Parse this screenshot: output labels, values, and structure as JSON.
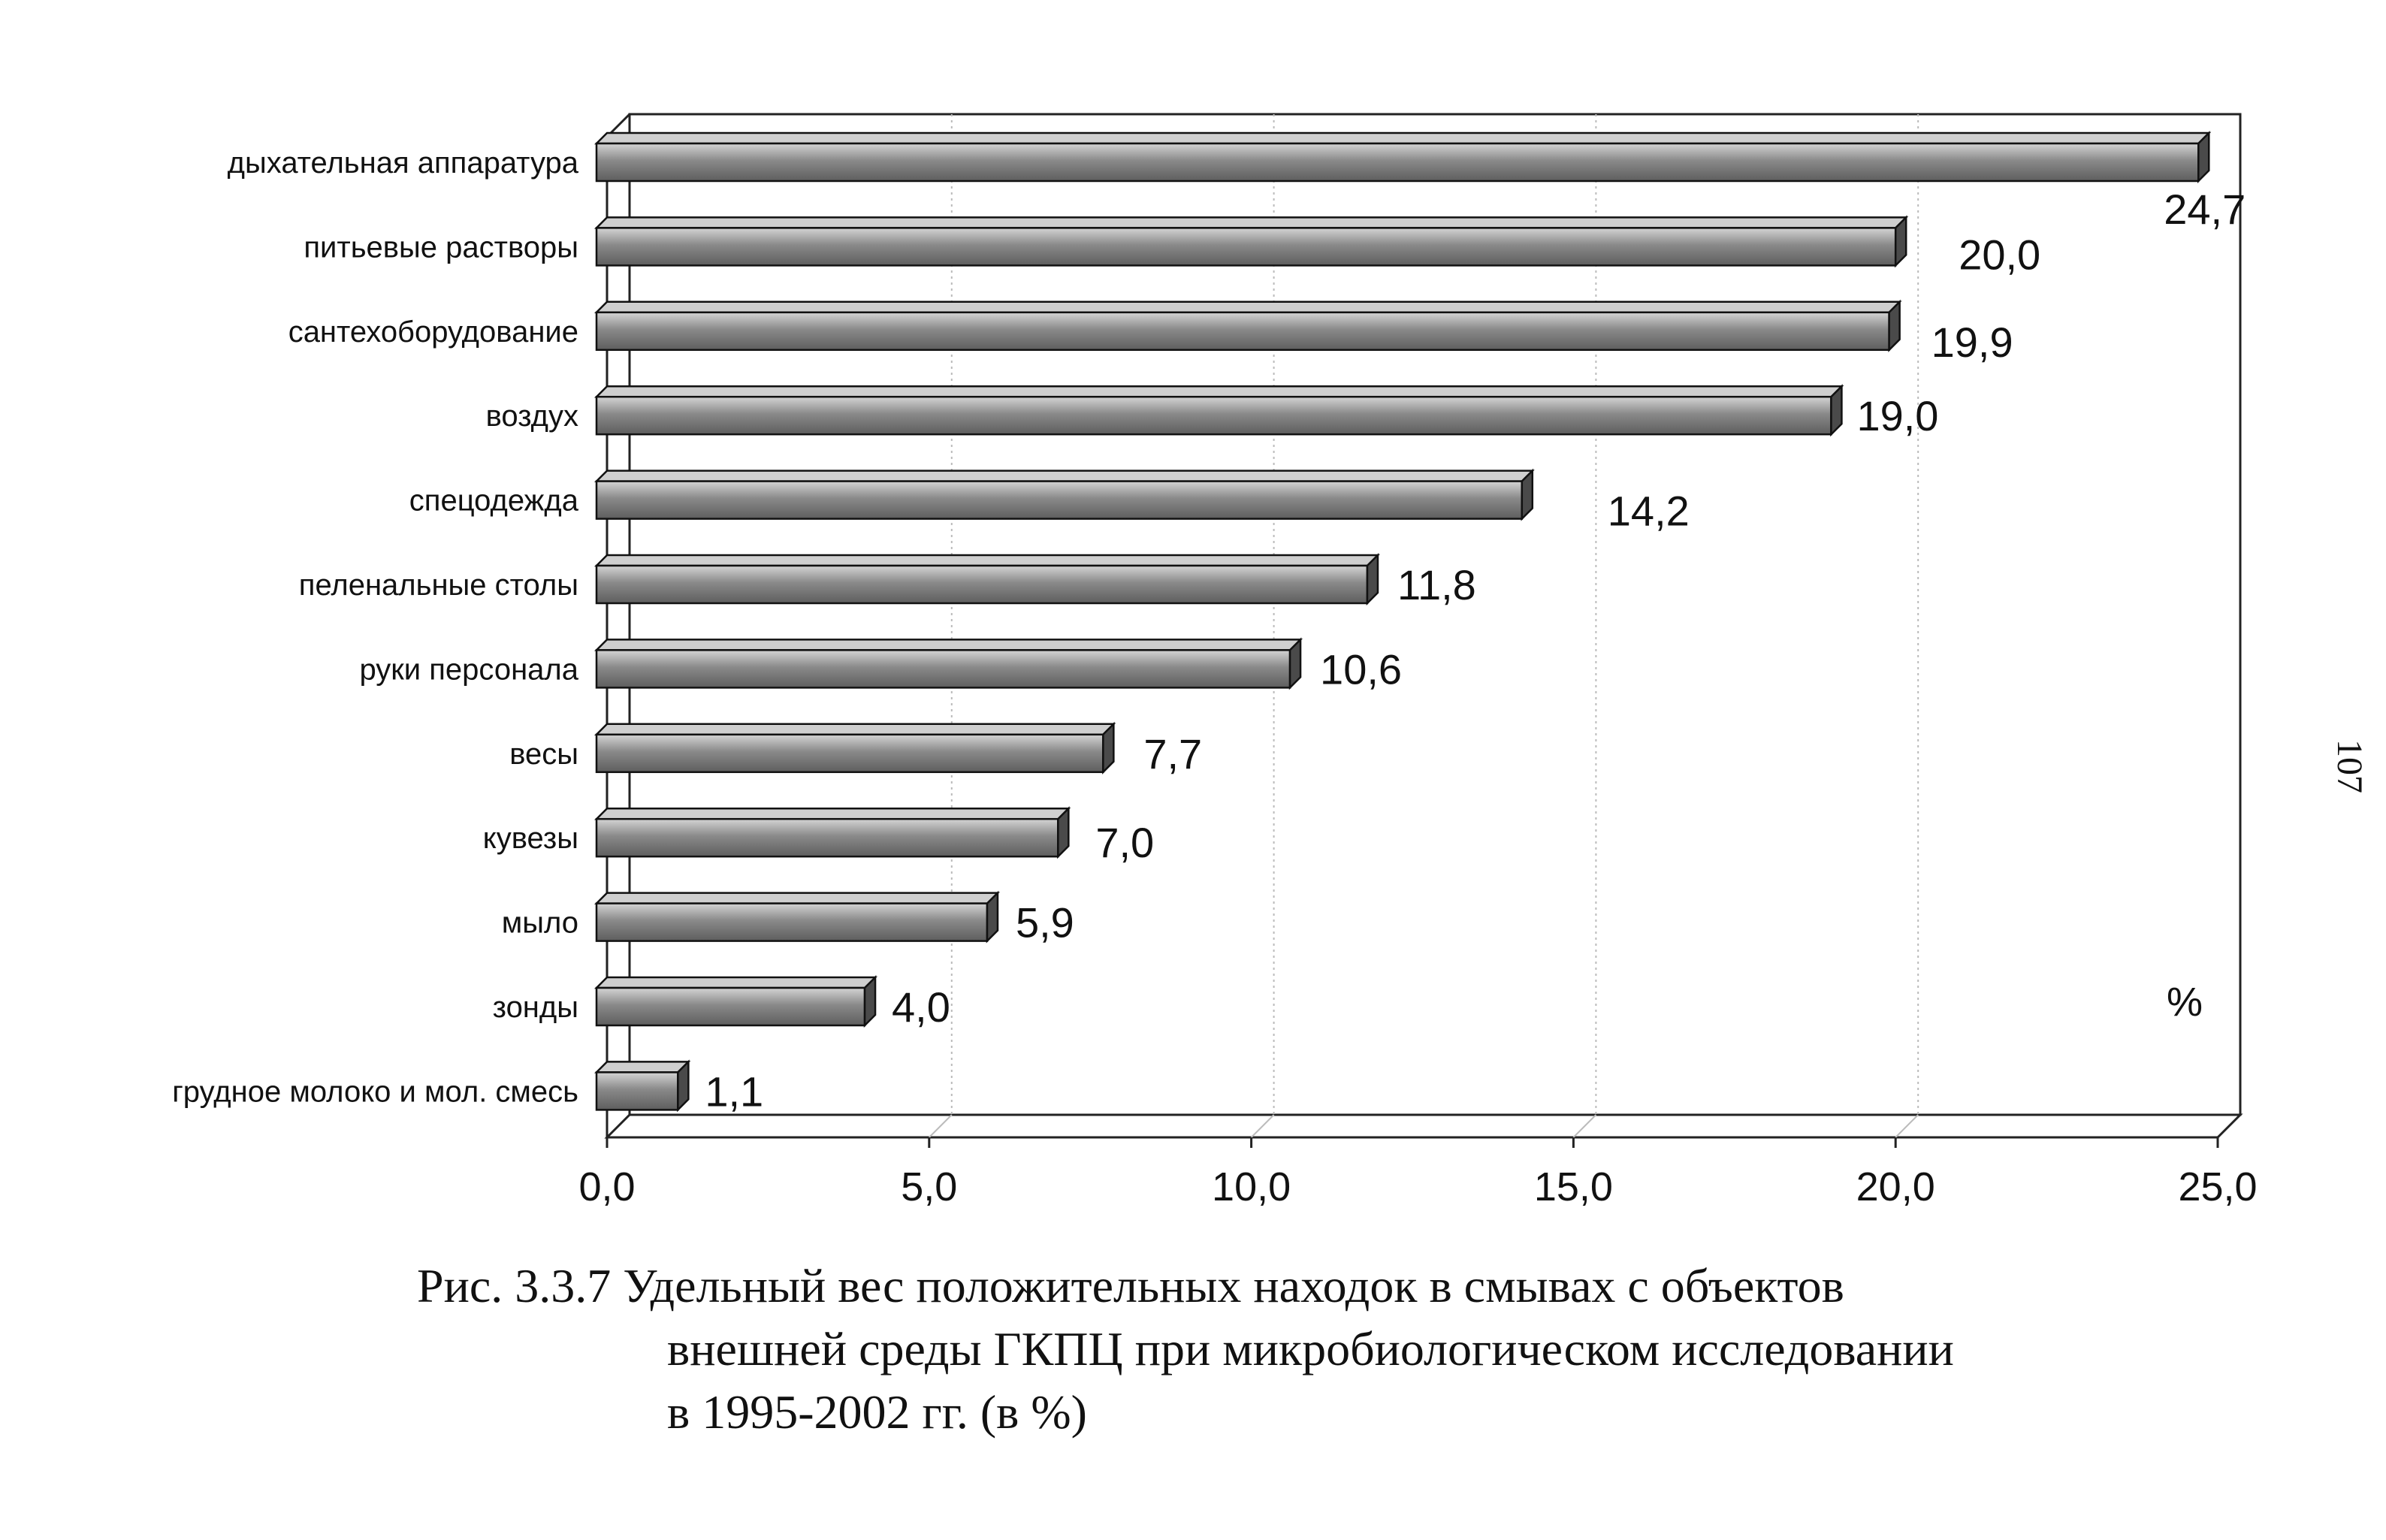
{
  "chart_data": {
    "type": "bar",
    "orientation": "horizontal",
    "categories": [
      "дыхательная аппаратура",
      "питьевые растворы",
      "сантехоборудование",
      "воздух",
      "спецодежда",
      "пеленальные столы",
      "руки персонала",
      "весы",
      "кувезы",
      "мыло",
      "зонды",
      "грудное молоко и мол. смесь"
    ],
    "values": [
      24.7,
      20.0,
      19.9,
      19.0,
      14.2,
      11.8,
      10.6,
      7.7,
      7.0,
      5.9,
      4.0,
      1.1
    ],
    "value_labels": [
      "24,7",
      "20,0",
      "19,9",
      "19,0",
      "14,2",
      "11,8",
      "10,6",
      "7,7",
      "7,0",
      "5,9",
      "4,0",
      "1,1"
    ],
    "xlim": [
      0,
      25
    ],
    "xticks": [
      0,
      5,
      10,
      15,
      20,
      25
    ],
    "xtick_labels": [
      "0,0",
      "5,0",
      "10,0",
      "15,0",
      "20,0",
      "25,0"
    ],
    "unit_label": "%",
    "grid": true,
    "bar_style": "3d-gray"
  },
  "caption": {
    "line1": "Рис. 3.3.7 Удельный вес положительных находок в смывах с объектов",
    "line2": "внешней среды ГКПЦ при микробиологическом исследовании",
    "line3": "в 1995-2002 гг. (в %)"
  },
  "page_number": "107",
  "colors": {
    "bar_front": "#8a8a8a",
    "bar_top": "#cfcfcf",
    "bar_side": "#4a4a4a",
    "grid": "#bbbbbb",
    "axis": "#222222"
  }
}
